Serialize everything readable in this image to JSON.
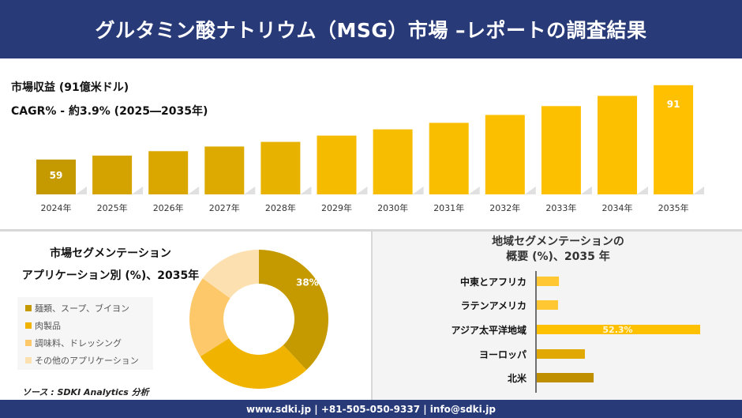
{
  "header": {
    "title": "グルタミン酸ナトリウム（MSG）市場 –レポートの調査結果"
  },
  "summary": {
    "revenue": "市場収益 (91億米ドル)",
    "cagr": "CAGR% - 約3.9% (2025―2035年)"
  },
  "chart_data": [
    {
      "type": "bar",
      "categories": [
        "2024年",
        "2025年",
        "2026年",
        "2027年",
        "2028年",
        "2029年",
        "2030年",
        "2031年",
        "2032年",
        "2033年",
        "2034年",
        "2035年"
      ],
      "values": [
        59,
        60.7,
        62.6,
        64.6,
        66.6,
        69.3,
        72,
        74.8,
        78.2,
        82,
        86.4,
        91
      ],
      "data_labels": {
        "0": "59",
        "11": "91"
      },
      "colors": [
        "#c49a00",
        "#d4a300",
        "#d9a700",
        "#dcaa00",
        "#e8b200",
        "#f5bb00",
        "#f7bd00",
        "#f9be00",
        "#fbbf00",
        "#fcc000",
        "#fdc000",
        "#ffc000"
      ]
    },
    {
      "type": "pie",
      "title": "市場セグメンテーション",
      "subtitle": "アプリケーション別 (%)、2035年",
      "labels": [
        "麺類、スープ、ブイヨン",
        "肉製品",
        "調味料、ドレッシング",
        "その他のアプリケーション"
      ],
      "values": [
        38,
        28,
        19,
        15
      ],
      "data_labels": [
        "38%",
        "",
        "",
        ""
      ],
      "colors": [
        "#c49a00",
        "#f0b400",
        "#fcc86a",
        "#fde0b0"
      ],
      "legend": "left"
    },
    {
      "type": "bar",
      "orientation": "horizontal",
      "title": "地域セグメンテーションの",
      "subtitle": "概要 (%)、2035 年",
      "categories": [
        "中東とアフリカ",
        "ラテンアメリカ",
        "アジア太平洋地域",
        "ヨーロッパ",
        "北米"
      ],
      "values": [
        7.1,
        6.8,
        52.3,
        15.4,
        18.2
      ],
      "data_labels": [
        "",
        "",
        "52.3%",
        "",
        ""
      ],
      "colors": [
        "#ffc832",
        "#ffc832",
        "#ffc000",
        "#e0a800",
        "#bf8f00"
      ]
    }
  ],
  "source": "ソース : SDKI Analytics 分析",
  "footer": {
    "contact": "www.sdki.jp | +81-505-050-9337 | info@sdki.jp"
  }
}
